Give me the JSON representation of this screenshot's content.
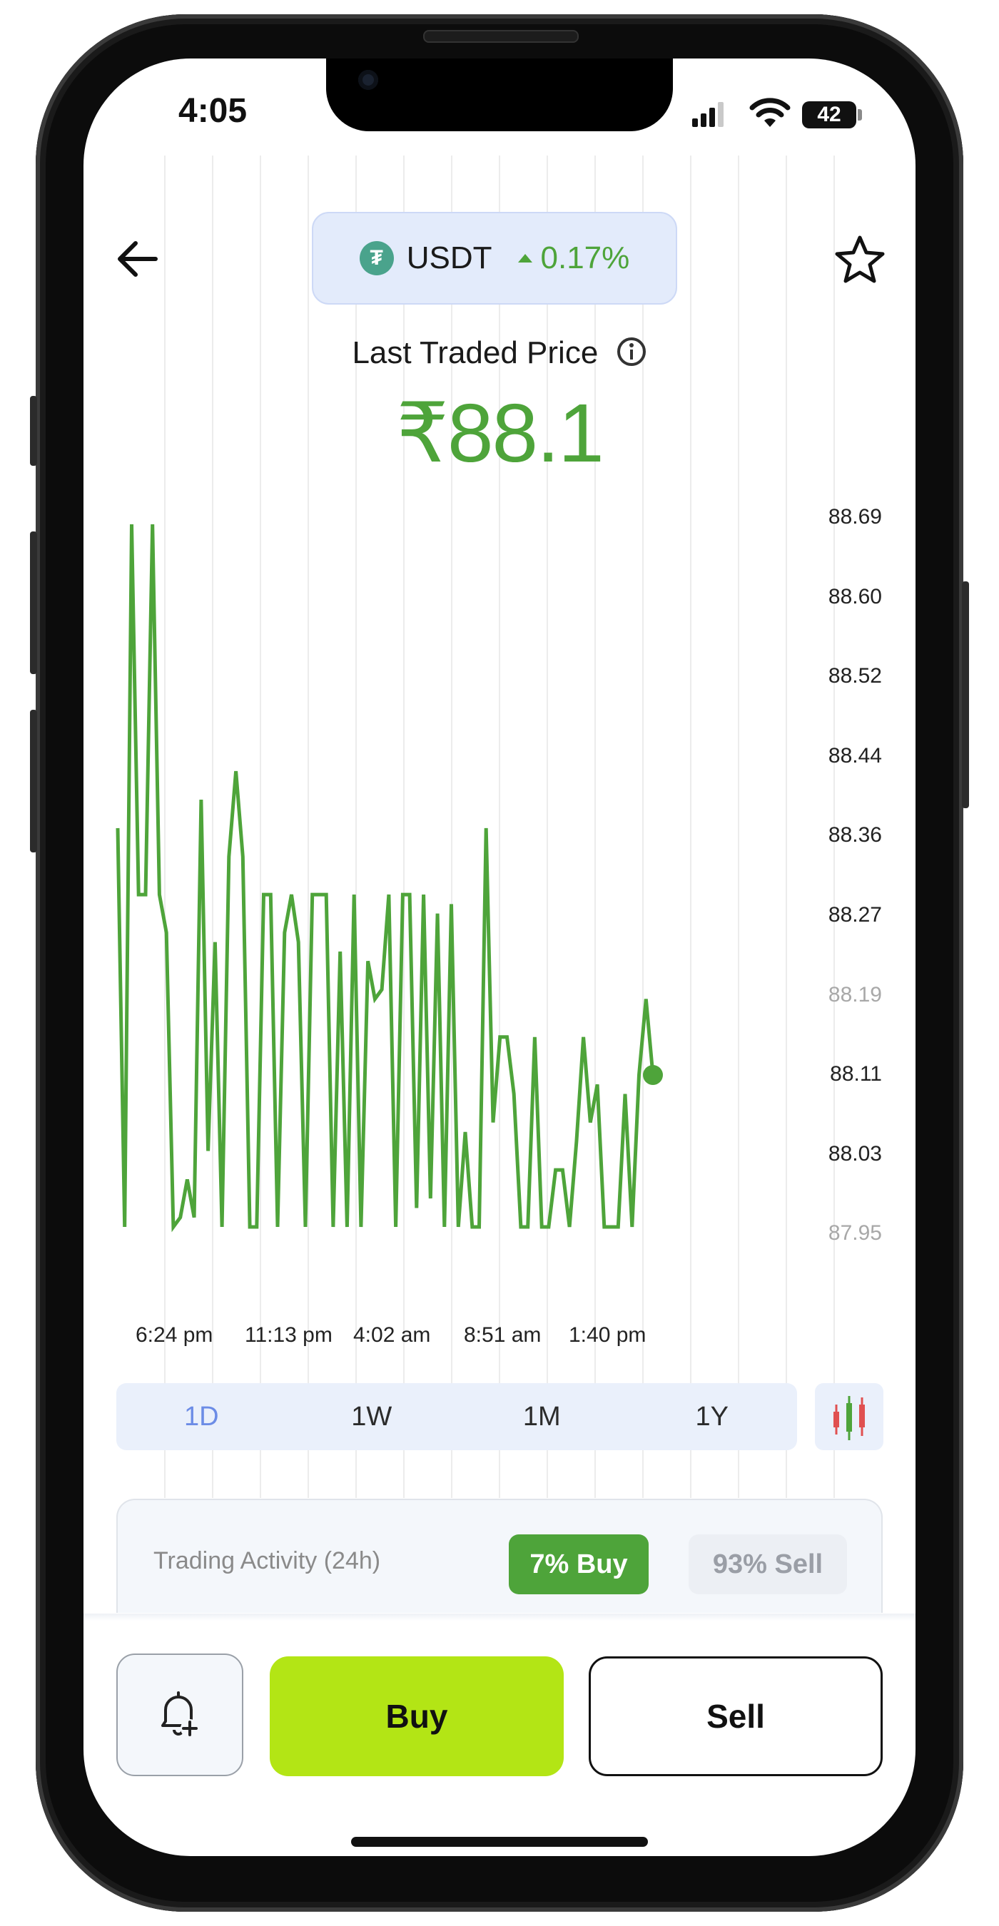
{
  "status_bar": {
    "time": "4:05",
    "battery": "42"
  },
  "header": {
    "coin_symbol": "USDT",
    "change_percent": "0.17%",
    "change_direction": "up"
  },
  "price_section": {
    "label": "Last Traded Price",
    "price": "₹88.1"
  },
  "chart_data": {
    "type": "line",
    "y_ticks": [
      "88.69",
      "88.60",
      "88.52",
      "88.44",
      "88.36",
      "88.27",
      "88.19",
      "88.11",
      "88.03",
      "87.95"
    ],
    "x_ticks": [
      "6:24 pm",
      "11:13 pm",
      "4:02 am",
      "8:51 am",
      "1:40 pm"
    ],
    "ylim": [
      87.95,
      88.69
    ],
    "last_value": 88.11,
    "series": [
      {
        "color": "#4ea43a",
        "values": [
          88.37,
          87.95,
          88.69,
          88.3,
          88.3,
          88.69,
          88.3,
          88.26,
          87.95,
          87.96,
          88.0,
          87.96,
          88.4,
          88.03,
          88.25,
          87.95,
          88.34,
          88.43,
          88.34,
          87.95,
          87.95,
          88.3,
          88.3,
          87.95,
          88.26,
          88.3,
          88.25,
          87.95,
          88.3,
          88.3,
          88.3,
          87.95,
          88.24,
          87.95,
          88.3,
          87.95,
          88.23,
          88.19,
          88.2,
          88.3,
          87.95,
          88.3,
          88.3,
          87.97,
          88.3,
          87.98,
          88.28,
          87.95,
          88.29,
          87.95,
          88.05,
          87.95,
          87.95,
          88.37,
          88.06,
          88.15,
          88.15,
          88.09,
          87.95,
          87.95,
          88.15,
          87.95,
          87.95,
          88.01,
          88.01,
          87.95,
          88.04,
          88.15,
          88.06,
          88.1,
          87.95,
          87.95,
          87.95,
          88.09,
          87.95,
          88.11,
          88.19,
          88.11
        ]
      }
    ]
  },
  "ranges": {
    "d1": "1D",
    "w1": "1W",
    "m1": "1M",
    "y1": "1Y"
  },
  "activity": {
    "label": "Trading Activity (24h)",
    "buy": "7% Buy",
    "sell": "93% Sell"
  },
  "actions": {
    "buy": "Buy",
    "sell": "Sell"
  },
  "colors": {
    "accent_green": "#4ea43a",
    "buy_button": "#b3e515",
    "active_tab": "#6c8ce6"
  }
}
